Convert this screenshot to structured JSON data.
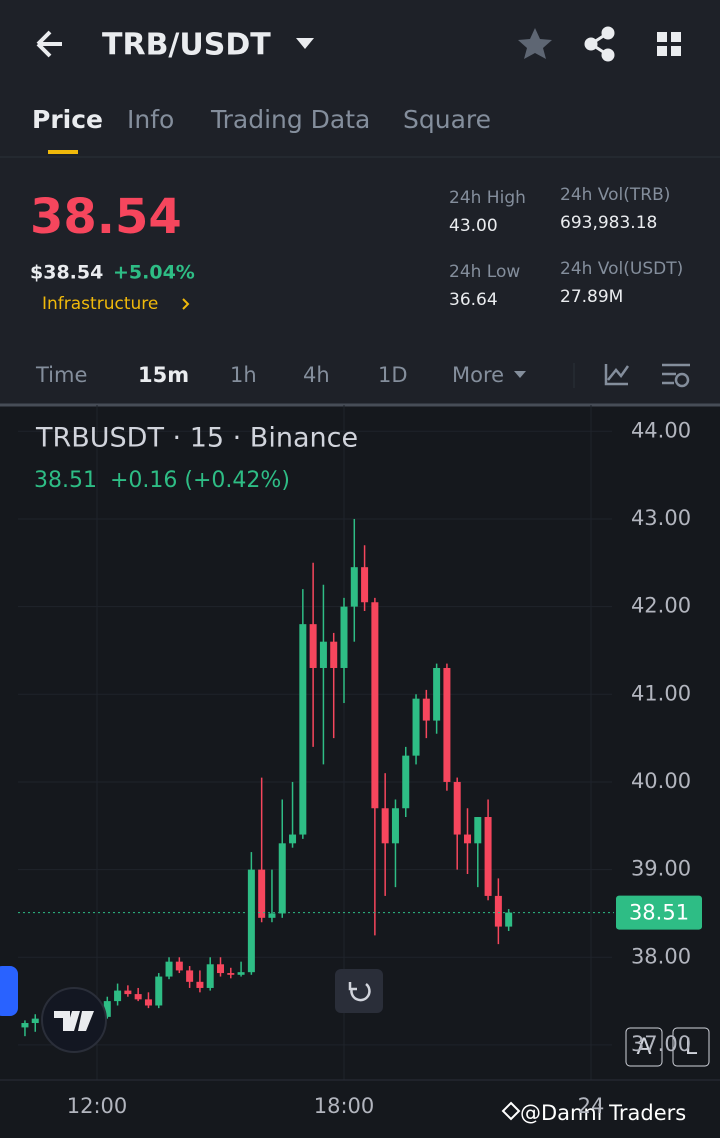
{
  "header": {
    "title": "TRB/USDT"
  },
  "tabs": [
    "Price",
    "Info",
    "Trading Data",
    "Square"
  ],
  "ticker": {
    "price": "38.54",
    "usd_price": "$38.54",
    "change": "+5.04%",
    "sector": "Infrastructure",
    "stats": [
      {
        "label": "24h High",
        "value": "43.00"
      },
      {
        "label": "24h Vol(TRB)",
        "value": "693,983.18"
      },
      {
        "label": "24h Low",
        "value": "36.64"
      },
      {
        "label": "24h Vol(USDT)",
        "value": "27.89M"
      }
    ]
  },
  "intervals": [
    "Time",
    "15m",
    "1h",
    "4h",
    "1D",
    "More"
  ],
  "chart_data": {
    "type": "candlestick",
    "title": "TRBUSDT · 15 · Binance",
    "last_price": 38.51,
    "last_change": "+0.16 (+0.42%)",
    "up_color": "#2ebd85",
    "down_color": "#f6465d",
    "x": [
      "10:15",
      "10:30",
      "10:45",
      "11:00",
      "11:15",
      "11:30",
      "11:45",
      "12:00",
      "12:15",
      "12:30",
      "12:45",
      "13:00",
      "13:15",
      "13:30",
      "13:45",
      "14:00",
      "14:15",
      "14:30",
      "14:45",
      "15:00",
      "15:15",
      "15:30",
      "15:45",
      "16:00",
      "16:15",
      "16:30",
      "16:45",
      "17:00",
      "17:15",
      "17:30",
      "17:45",
      "18:00",
      "18:15",
      "18:30",
      "18:45",
      "19:00",
      "19:15",
      "19:30",
      "19:45",
      "20:00",
      "20:15",
      "20:30",
      "20:45",
      "21:00",
      "21:15",
      "21:30",
      "21:45",
      "22:00"
    ],
    "open": [
      37.2,
      37.25,
      37.3,
      37.38,
      37.28,
      37.35,
      37.3,
      37.36,
      37.32,
      37.5,
      37.62,
      37.58,
      37.52,
      37.45,
      37.78,
      37.95,
      37.85,
      37.72,
      37.65,
      37.92,
      37.82,
      37.8,
      37.83,
      39.0,
      38.45,
      38.5,
      39.3,
      39.4,
      41.8,
      41.3,
      41.6,
      41.3,
      42.0,
      42.45,
      42.05,
      39.7,
      39.3,
      39.7,
      40.3,
      40.95,
      40.7,
      41.3,
      40.0,
      39.4,
      39.3,
      39.6,
      38.7,
      38.35
    ],
    "high": [
      37.28,
      37.35,
      37.42,
      37.45,
      37.4,
      37.42,
      37.4,
      37.45,
      37.55,
      37.7,
      37.68,
      37.65,
      37.6,
      37.82,
      38.0,
      38.0,
      37.9,
      37.85,
      38.0,
      38.0,
      37.88,
      37.95,
      39.2,
      40.05,
      39.0,
      39.8,
      40.0,
      42.2,
      42.5,
      42.25,
      41.7,
      42.1,
      43.0,
      42.7,
      42.1,
      40.1,
      39.8,
      40.4,
      41.0,
      41.05,
      41.35,
      41.35,
      40.05,
      39.7,
      39.6,
      39.8,
      38.9,
      38.55
    ],
    "low": [
      37.1,
      37.15,
      37.22,
      37.2,
      37.22,
      37.25,
      37.22,
      37.28,
      37.3,
      37.45,
      37.55,
      37.5,
      37.42,
      37.42,
      37.75,
      37.82,
      37.65,
      37.6,
      37.62,
      37.78,
      37.76,
      37.78,
      37.8,
      38.4,
      38.4,
      38.45,
      39.25,
      39.35,
      40.4,
      40.2,
      40.5,
      40.9,
      41.6,
      41.95,
      38.25,
      38.7,
      38.8,
      39.6,
      40.2,
      40.5,
      40.55,
      39.9,
      39.0,
      38.95,
      38.8,
      38.65,
      38.15,
      38.3
    ],
    "close": [
      37.25,
      37.3,
      37.38,
      37.28,
      37.35,
      37.3,
      37.36,
      37.32,
      37.5,
      37.62,
      37.58,
      37.52,
      37.45,
      37.78,
      37.95,
      37.85,
      37.72,
      37.65,
      37.92,
      37.82,
      37.8,
      37.83,
      39.0,
      38.45,
      38.5,
      39.3,
      39.4,
      41.8,
      41.3,
      41.6,
      41.3,
      42.0,
      42.45,
      42.05,
      39.7,
      39.3,
      39.7,
      40.3,
      40.95,
      40.7,
      41.3,
      40.0,
      39.4,
      39.3,
      39.6,
      38.7,
      38.35,
      38.51
    ],
    "ylim": [
      36.6,
      44.3
    ],
    "yticks": [
      {
        "value": 44,
        "label": "44.00"
      },
      {
        "value": 43,
        "label": "43.00"
      },
      {
        "value": 42,
        "label": "42.00"
      },
      {
        "value": 41,
        "label": "41.00"
      },
      {
        "value": 40,
        "label": "40.00"
      },
      {
        "value": 39,
        "label": "39.00"
      },
      {
        "value": 38,
        "label": "38.00"
      },
      {
        "value": 37,
        "label": "37.00"
      }
    ],
    "xticks": [
      {
        "value": "12:00",
        "label": "12:00"
      },
      {
        "value": "18:00",
        "label": "18:00"
      },
      {
        "value": "24:00",
        "label": "24"
      }
    ],
    "grid": true
  },
  "buttons": [
    "A",
    "L"
  ],
  "watermark": "@Danni Traders"
}
